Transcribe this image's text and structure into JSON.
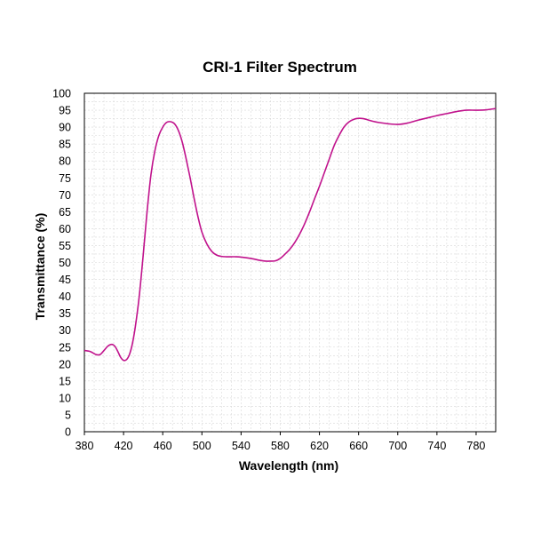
{
  "chart_data": {
    "type": "line",
    "title": "CRI-1 Filter Spectrum",
    "xlabel": "Wavelength (nm)",
    "ylabel": "Transmittance (%)",
    "xlim": [
      380,
      800
    ],
    "ylim": [
      0,
      100
    ],
    "x_ticks": [
      380,
      420,
      460,
      500,
      540,
      580,
      620,
      660,
      700,
      740,
      780
    ],
    "y_ticks": [
      0,
      5,
      10,
      15,
      20,
      25,
      30,
      35,
      40,
      45,
      50,
      55,
      60,
      65,
      70,
      75,
      80,
      85,
      90,
      95,
      100
    ],
    "grid": true,
    "series": [
      {
        "color": "#c0128c",
        "x": [
          380,
          386,
          392,
          396,
          400,
          404,
          408,
          411,
          414,
          417,
          420,
          423,
          426,
          429,
          432,
          436,
          440,
          444,
          448,
          452,
          456,
          460,
          464,
          468,
          472,
          476,
          480,
          484,
          488,
          492,
          496,
          500,
          505,
          510,
          515,
          520,
          525,
          530,
          535,
          540,
          550,
          560,
          565,
          570,
          575,
          580,
          585,
          590,
          595,
          600,
          605,
          610,
          615,
          620,
          625,
          630,
          635,
          640,
          645,
          650,
          655,
          660,
          665,
          670,
          675,
          680,
          690,
          700,
          710,
          720,
          730,
          740,
          750,
          760,
          770,
          780,
          790,
          800
        ],
        "y": [
          24,
          23.7,
          22.8,
          22.8,
          24,
          25.3,
          25.8,
          25.3,
          23.8,
          22,
          21.1,
          21.3,
          22.8,
          26,
          31,
          40,
          52,
          65,
          76,
          83,
          87.5,
          90,
          91.4,
          91.6,
          91,
          89,
          85.5,
          80.5,
          75,
          69,
          63.5,
          59,
          55.5,
          53.3,
          52.2,
          51.8,
          51.7,
          51.7,
          51.7,
          51.6,
          51.2,
          50.6,
          50.4,
          50.4,
          50.5,
          51.2,
          52.5,
          54,
          56,
          58.5,
          61.5,
          65,
          68.8,
          72.5,
          76.5,
          80.5,
          84.5,
          87.5,
          90,
          91.5,
          92.3,
          92.6,
          92.5,
          92.1,
          91.7,
          91.4,
          91,
          90.8,
          91.2,
          92,
          92.7,
          93.4,
          94,
          94.6,
          95,
          95,
          95.1,
          95.5
        ]
      }
    ]
  }
}
